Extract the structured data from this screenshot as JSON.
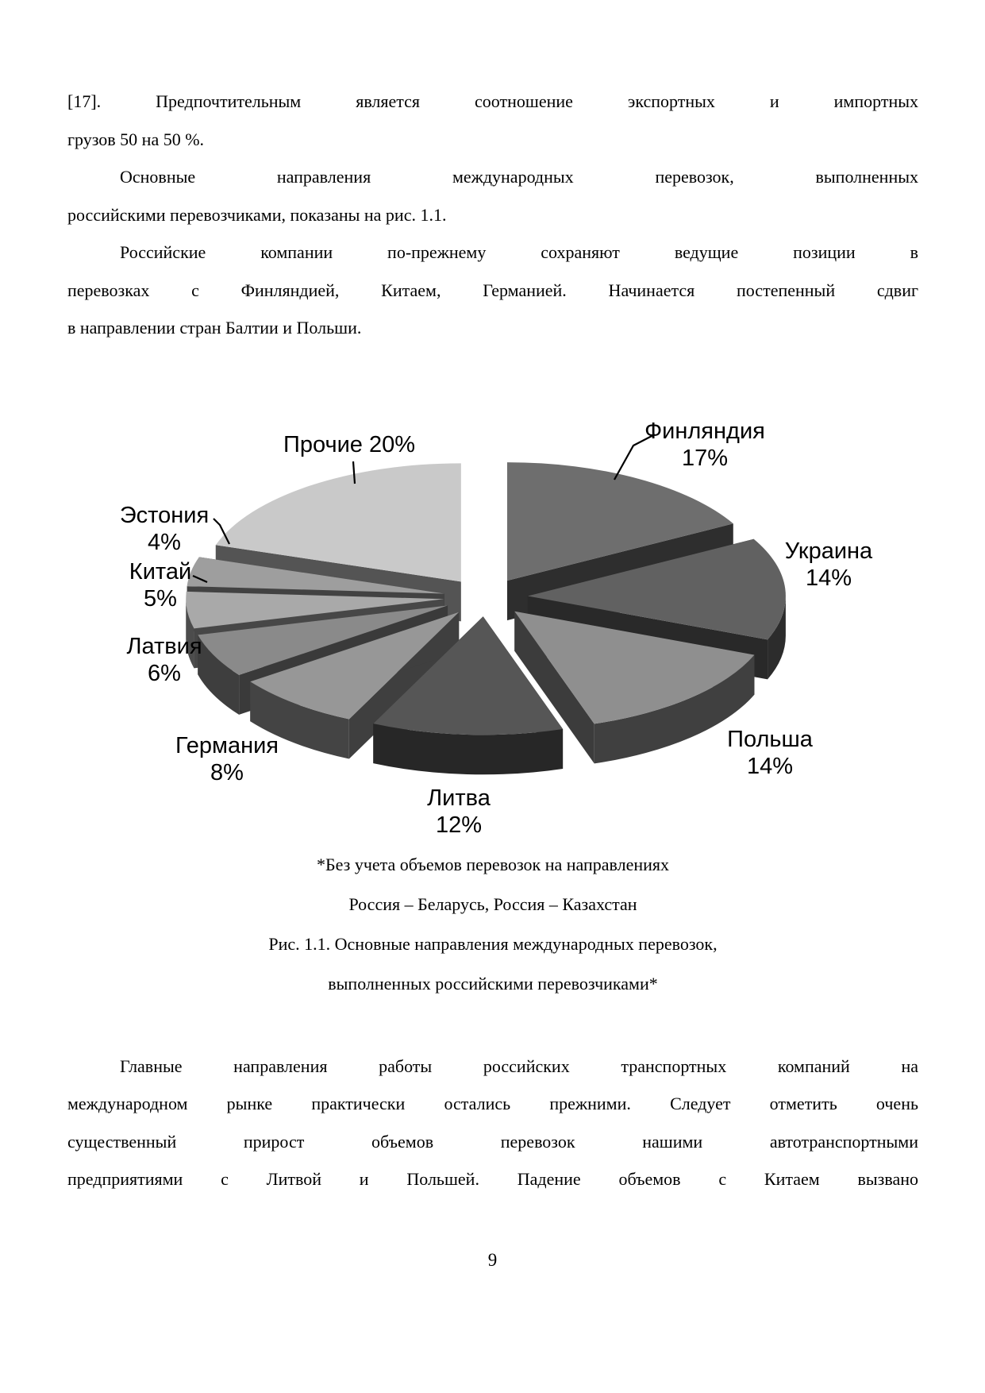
{
  "page": {
    "number": "9"
  },
  "body": {
    "p1": {
      "lines": [
        "[17]. Предпочтительным является соотношение экспортных и импортных",
        "грузов 50 на 50 %."
      ]
    },
    "p2": {
      "lines": [
        "Основные направления международных перевозок, выполненных",
        "российскими перевозчиками, показаны на рис. 1.1."
      ]
    },
    "p3": {
      "lines": [
        "Российские компании по-прежнему сохраняют ведущие позиции в",
        "перевозках с Финляндией, Китаем, Германией. Начинается постепенный сдвиг",
        "в направлении стран Балтии и Польши."
      ]
    },
    "p4": {
      "lines": [
        "Главные направления работы российских транспортных компаний на",
        "международном рынке практически остались прежними. Следует отметить очень",
        "существенный прирост объемов перевозок нашими автотранспортными",
        "предприятиями с Литвой и Польшей. Падение объемов с Китаем вызвано"
      ]
    }
  },
  "figure": {
    "note_line1": "*Без учета объемов перевозок на направлениях",
    "note_line2": "Россия – Беларусь, Россия – Казахстан",
    "caption_line1": "Рис. 1.1. Основные направления международных перевозок,",
    "caption_line2": "выполненных российскими перевозчиками*"
  },
  "chart_data": {
    "type": "pie",
    "style": "3d-exploded",
    "title": "",
    "unit": "%",
    "direction": "clockwise",
    "start_angle_deg": 0,
    "legend": "none",
    "data_labels": "outside",
    "grayscale": true,
    "slices": [
      {
        "label": "Финляндия",
        "value": 17,
        "pct_label": "17%",
        "color": "#6e6e6e"
      },
      {
        "label": "Украина",
        "value": 14,
        "pct_label": "14%",
        "color": "#616161"
      },
      {
        "label": "Польша",
        "value": 14,
        "pct_label": "14%",
        "color": "#8f8f8f"
      },
      {
        "label": "Литва",
        "value": 12,
        "pct_label": "12%",
        "color": "#565656"
      },
      {
        "label": "Германия",
        "value": 8,
        "pct_label": "8%",
        "color": "#979797"
      },
      {
        "label": "Латвия",
        "value": 6,
        "pct_label": "6%",
        "color": "#8a8a8a"
      },
      {
        "label": "Китай",
        "value": 5,
        "pct_label": "5%",
        "color": "#a9a9a9"
      },
      {
        "label": "Эстония",
        "value": 4,
        "pct_label": "4%",
        "color": "#9e9e9e"
      },
      {
        "label": "Прочие",
        "value": 20,
        "pct_label": "20%",
        "color": "#c9c9c9"
      }
    ]
  }
}
